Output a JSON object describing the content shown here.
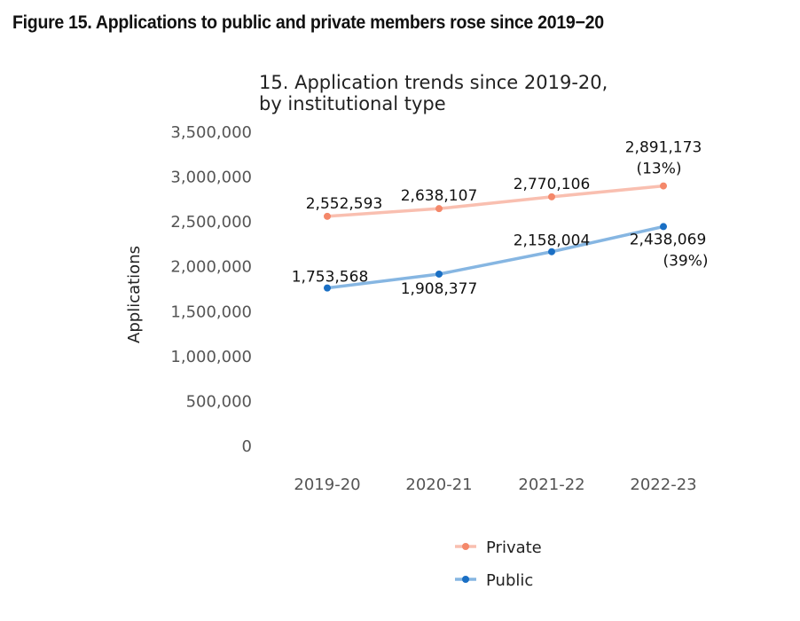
{
  "figure_title": "Figure 15. Applications to public and private members rose since 2019−20",
  "chart_data": {
    "type": "line",
    "title_lines": [
      "15. Application trends since 2019-20,",
      "by institutional type"
    ],
    "xlabel": "",
    "ylabel": "Applications",
    "categories": [
      "2019-20",
      "2020-21",
      "2021-22",
      "2022-23"
    ],
    "ylim": [
      0,
      3500000
    ],
    "yticks": [
      0,
      500000,
      1000000,
      1500000,
      2000000,
      2500000,
      3000000,
      3500000
    ],
    "ytick_labels": [
      "0",
      "500,000",
      "1,000,000",
      "1,500,000",
      "2,000,000",
      "2,500,000",
      "3,000,000",
      "3,500,000"
    ],
    "grid": false,
    "legend_placement": "bottom",
    "series": [
      {
        "name": "Private",
        "values": [
          2552593,
          2638107,
          2770106,
          2891173
        ],
        "labels": [
          "2,552,593",
          "2,638,107",
          "2,770,106",
          "2,891,173"
        ],
        "final_change": "(13%)",
        "line_color": "#f9bfb0",
        "marker_color": "#f4886a"
      },
      {
        "name": "Public",
        "values": [
          1753568,
          1908377,
          2158004,
          2438069
        ],
        "labels": [
          "1,753,568",
          "1,908,377",
          "2,158,004",
          "2,438,069"
        ],
        "final_change": "(39%)",
        "line_color": "#86b6e2",
        "marker_color": "#1a6fc4"
      }
    ]
  }
}
